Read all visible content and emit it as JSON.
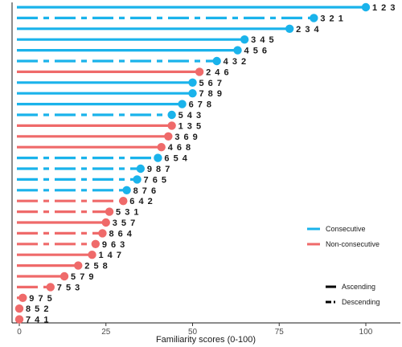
{
  "chart_data": {
    "type": "lollipop",
    "orientation": "horizontal",
    "xlabel": "Familiarity scores (0-100)",
    "xlim": [
      0,
      100
    ],
    "xticks": [
      0,
      25,
      50,
      75,
      100
    ],
    "grid": false,
    "colors": {
      "Consecutive": "#1AB3EB",
      "Non-consecutive": "#EF6A6A"
    },
    "legend_color": {
      "placement": "right",
      "entries": [
        "Consecutive",
        "Non-consecutive"
      ]
    },
    "legend_linetype": {
      "placement": "bottom-right",
      "entries": [
        {
          "label": "Ascending",
          "style": "solid"
        },
        {
          "label": "Descending",
          "style": "dashed"
        }
      ]
    },
    "rows": [
      {
        "label": "1 2 3",
        "value": 100,
        "group": "Consecutive",
        "order": "Ascending"
      },
      {
        "label": "3 2 1",
        "value": 85,
        "group": "Consecutive",
        "order": "Descending"
      },
      {
        "label": "2 3 4",
        "value": 78,
        "group": "Consecutive",
        "order": "Ascending"
      },
      {
        "label": "3 4 5",
        "value": 65,
        "group": "Consecutive",
        "order": "Ascending"
      },
      {
        "label": "4 5 6",
        "value": 63,
        "group": "Consecutive",
        "order": "Ascending"
      },
      {
        "label": "4 3 2",
        "value": 57,
        "group": "Consecutive",
        "order": "Descending"
      },
      {
        "label": "2 4 6",
        "value": 52,
        "group": "Non-consecutive",
        "order": "Ascending"
      },
      {
        "label": "5 6 7",
        "value": 50,
        "group": "Consecutive",
        "order": "Ascending"
      },
      {
        "label": "7 8 9",
        "value": 50,
        "group": "Consecutive",
        "order": "Ascending"
      },
      {
        "label": "6 7 8",
        "value": 47,
        "group": "Consecutive",
        "order": "Ascending"
      },
      {
        "label": "5 4 3",
        "value": 44,
        "group": "Consecutive",
        "order": "Descending"
      },
      {
        "label": "1 3 5",
        "value": 44,
        "group": "Non-consecutive",
        "order": "Ascending"
      },
      {
        "label": "3 6 9",
        "value": 43,
        "group": "Non-consecutive",
        "order": "Ascending"
      },
      {
        "label": "4 6 8",
        "value": 41,
        "group": "Non-consecutive",
        "order": "Ascending"
      },
      {
        "label": "6 5 4",
        "value": 40,
        "group": "Consecutive",
        "order": "Descending"
      },
      {
        "label": "9 8 7",
        "value": 35,
        "group": "Consecutive",
        "order": "Descending"
      },
      {
        "label": "7 6 5",
        "value": 34,
        "group": "Consecutive",
        "order": "Descending"
      },
      {
        "label": "8 7 6",
        "value": 31,
        "group": "Consecutive",
        "order": "Descending"
      },
      {
        "label": "6 4 2",
        "value": 30,
        "group": "Non-consecutive",
        "order": "Descending"
      },
      {
        "label": "5 3 1",
        "value": 26,
        "group": "Non-consecutive",
        "order": "Descending"
      },
      {
        "label": "3 5 7",
        "value": 25,
        "group": "Non-consecutive",
        "order": "Ascending"
      },
      {
        "label": "8 6 4",
        "value": 24,
        "group": "Non-consecutive",
        "order": "Descending"
      },
      {
        "label": "9 6 3",
        "value": 22,
        "group": "Non-consecutive",
        "order": "Descending"
      },
      {
        "label": "1 4 7",
        "value": 21,
        "group": "Non-consecutive",
        "order": "Ascending"
      },
      {
        "label": "2 5 8",
        "value": 17,
        "group": "Non-consecutive",
        "order": "Ascending"
      },
      {
        "label": "5 7 9",
        "value": 13,
        "group": "Non-consecutive",
        "order": "Ascending"
      },
      {
        "label": "7 5 3",
        "value": 9,
        "group": "Non-consecutive",
        "order": "Descending"
      },
      {
        "label": "9 7 5",
        "value": 1,
        "group": "Non-consecutive",
        "order": "Descending"
      },
      {
        "label": "8 5 2",
        "value": 0,
        "group": "Non-consecutive",
        "order": "Descending"
      },
      {
        "label": "7 4 1",
        "value": 0,
        "group": "Non-consecutive",
        "order": "Descending"
      }
    ]
  }
}
